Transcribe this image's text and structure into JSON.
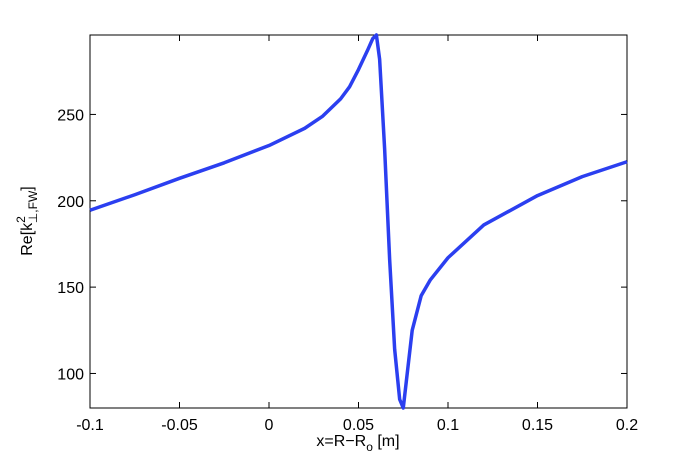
{
  "chart_data": {
    "type": "line",
    "xlabel": {
      "text": "x=R−R",
      "sub": "o",
      "end": " [m]"
    },
    "ylabel": {
      "text": "Re[k",
      "sup": "2",
      "sub": "⊥,FW",
      "end": "]"
    },
    "x": [
      -0.1,
      -0.075,
      -0.05,
      -0.025,
      0,
      0.02,
      0.03,
      0.04,
      0.045,
      0.05,
      0.055,
      0.058,
      0.06,
      0.0618,
      0.0646,
      0.0674,
      0.0702,
      0.073,
      0.075,
      0.08,
      0.085,
      0.09,
      0.1,
      0.12,
      0.15,
      0.175,
      0.2
    ],
    "series": [
      {
        "color": "#2b3ff0",
        "values": [
          194.5,
          203.5,
          213,
          222,
          232,
          242,
          249,
          259,
          266,
          276,
          287,
          294,
          296,
          282,
          230,
          166,
          114,
          85,
          80,
          125,
          145,
          154,
          167,
          186,
          203,
          214,
          222.6
        ]
      }
    ],
    "xlim": [
      -0.1,
      0.2
    ],
    "xticks": [
      -0.1,
      -0.05,
      0,
      0.05,
      0.1,
      0.15,
      0.2
    ],
    "ylim": [
      80,
      296
    ],
    "yticks": [
      100,
      150,
      200,
      250
    ]
  }
}
